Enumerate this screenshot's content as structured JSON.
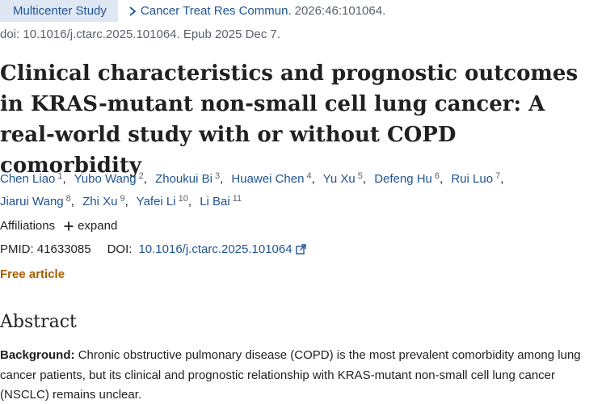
{
  "header": {
    "badge": "Multicenter Study",
    "journal": "Cancer Treat Res Commun.",
    "citation": "2026:46:101064.",
    "doi_line": "doi: 10.1016/j.ctarc.2025.101064. Epub 2025 Dec 7."
  },
  "title": "Clinical characteristics and prognostic outcomes in KRAS-mutant non-small cell lung cancer: A real-world study with or without COPD comorbidity",
  "authors": [
    {
      "name": "Chen Liao",
      "sup": "1"
    },
    {
      "name": "Yubo Wang",
      "sup": "2"
    },
    {
      "name": "Zhoukui Bi",
      "sup": "3"
    },
    {
      "name": "Huawei Chen",
      "sup": "4"
    },
    {
      "name": "Yu Xu",
      "sup": "5"
    },
    {
      "name": "Defeng Hu",
      "sup": "6"
    },
    {
      "name": "Rui Luo",
      "sup": "7"
    },
    {
      "name": "Jiarui Wang",
      "sup": "8"
    },
    {
      "name": "Zhi Xu",
      "sup": "9"
    },
    {
      "name": "Yafei Li",
      "sup": "10"
    },
    {
      "name": "Li Bai",
      "sup": "11"
    }
  ],
  "affiliations": {
    "label": "Affiliations",
    "expand": "expand"
  },
  "ids": {
    "pmid_label": "PMID:",
    "pmid": "41633085",
    "doi_label": "DOI:",
    "doi": "10.1016/j.ctarc.2025.101064"
  },
  "free_article": "Free article",
  "abstract": {
    "heading": "Abstract",
    "background_label": "Background:",
    "background_text": "Chronic obstructive pulmonary disease (COPD) is the most prevalent comorbidity among lung cancer patients, but its clinical and prognostic relationship with KRAS-mutant non-small cell lung cancer (NSCLC) remains unclear."
  },
  "icons": {
    "chevron": "chevron-right-icon",
    "plus": "plus-icon",
    "external": "external-link-icon"
  },
  "colors": {
    "link": "#205493",
    "badge_bg": "#dfe7f3",
    "free_article": "#a65c00",
    "muted": "#5b616b"
  }
}
